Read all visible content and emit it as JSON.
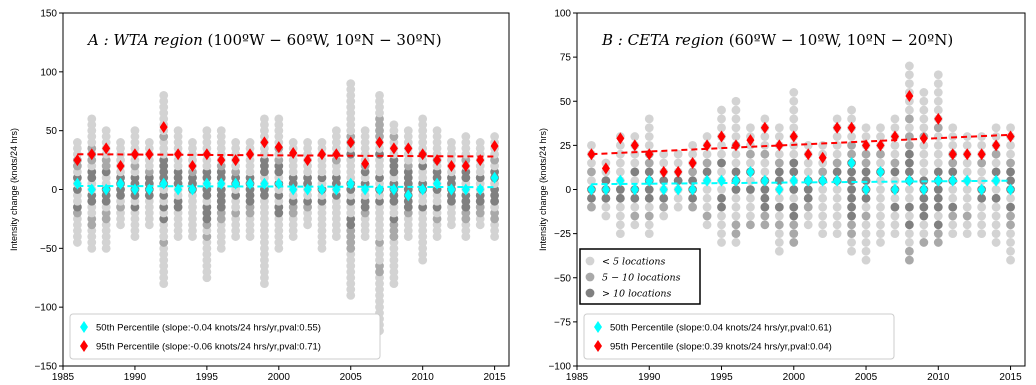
{
  "chart_data": [
    {
      "type": "scatter",
      "title": "A : WTA region (100°W − 60°W, 10°N − 30°N)",
      "title_main": "A : WTA region",
      "title_coords": "(100ºW − 60ºW, 10ºN − 30ºN)",
      "ylabel": "Intensity change (knots/24 hrs)",
      "xlabel": "",
      "xlim": [
        1985,
        2016
      ],
      "ylim": [
        -150,
        150
      ],
      "xticks": [
        "1985",
        "1990",
        "1995",
        "2000",
        "2005",
        "2010",
        "2015"
      ],
      "yticks": [
        "-150",
        "-100",
        "-50",
        "0",
        "50",
        "100",
        "150"
      ],
      "grid": false,
      "legend_position": "lower-left",
      "series": [
        {
          "name": "50th Percentile (slope:-0.04 knots/24 hrs/yr,pval:0.55)",
          "color": "#00ffff",
          "x": [
            1986,
            1987,
            1988,
            1989,
            1990,
            1991,
            1992,
            1993,
            1994,
            1995,
            1996,
            1997,
            1998,
            1999,
            2000,
            2001,
            2002,
            2003,
            2004,
            2005,
            2006,
            2007,
            2008,
            2009,
            2010,
            2011,
            2012,
            2013,
            2014,
            2015
          ],
          "values": [
            5,
            0,
            0,
            5,
            0,
            0,
            5,
            0,
            0,
            5,
            5,
            5,
            5,
            5,
            5,
            0,
            0,
            0,
            0,
            5,
            0,
            0,
            0,
            -5,
            0,
            5,
            0,
            0,
            0,
            10
          ],
          "trend": [
            3,
            2
          ]
        },
        {
          "name": "95th Percentile (slope:-0.06 knots/24 hrs/yr,pval:0.71)",
          "color": "#ff0000",
          "x": [
            1986,
            1987,
            1988,
            1989,
            1990,
            1991,
            1992,
            1993,
            1994,
            1995,
            1996,
            1997,
            1998,
            1999,
            2000,
            2001,
            2002,
            2003,
            2004,
            2005,
            2006,
            2007,
            2008,
            2009,
            2010,
            2011,
            2012,
            2013,
            2014,
            2015
          ],
          "values": [
            25,
            30,
            35,
            20,
            30,
            30,
            53,
            30,
            20,
            30,
            25,
            25,
            30,
            40,
            36,
            31,
            25,
            30,
            30,
            40,
            22,
            40,
            35,
            35,
            30,
            25,
            20,
            20,
            25,
            37
          ],
          "trend": [
            30,
            28
          ]
        }
      ],
      "range_min": [
        -45,
        -50,
        -50,
        -30,
        -40,
        -30,
        -80,
        -40,
        -40,
        -75,
        -50,
        -40,
        -40,
        -80,
        -50,
        -40,
        -30,
        -50,
        -40,
        -90,
        -40,
        -120,
        -80,
        -40,
        -60,
        -40,
        -30,
        -40,
        -30,
        -40
      ],
      "range_max": [
        40,
        60,
        50,
        40,
        50,
        40,
        80,
        50,
        40,
        50,
        50,
        40,
        40,
        60,
        60,
        40,
        40,
        40,
        50,
        90,
        50,
        80,
        55,
        50,
        60,
        50,
        40,
        45,
        40,
        45
      ]
    },
    {
      "type": "scatter",
      "title": "B : CETA region (60°W − 10°W, 10°N − 20°N)",
      "title_main": "B : CETA region",
      "title_coords": "(60ºW − 10ºW, 10ºN − 20ºN)",
      "ylabel": "Intensity change (knots/24 hrs)",
      "xlabel": "",
      "xlim": [
        1985,
        2016
      ],
      "ylim": [
        -100,
        100
      ],
      "xticks": [
        "1985",
        "1990",
        "1995",
        "2000",
        "2005",
        "2010",
        "2015"
      ],
      "yticks": [
        "-100",
        "-75",
        "-50",
        "-25",
        "0",
        "25",
        "50",
        "75",
        "100"
      ],
      "grid": false,
      "legend_position": "lower-left",
      "size_legend": [
        "< 5 locations",
        "5 − 10 locations",
        "> 10 locations"
      ],
      "series": [
        {
          "name": "50th Percentile (slope:0.04 knots/24 hrs/yr,pval:0.61)",
          "color": "#00ffff",
          "x": [
            1986,
            1987,
            1988,
            1989,
            1990,
            1991,
            1992,
            1993,
            1994,
            1995,
            1996,
            1997,
            1998,
            1999,
            2000,
            2001,
            2002,
            2003,
            2004,
            2005,
            2006,
            2007,
            2008,
            2009,
            2010,
            2011,
            2012,
            2013,
            2014,
            2015
          ],
          "values": [
            0,
            0,
            5,
            0,
            5,
            0,
            0,
            0,
            5,
            5,
            5,
            10,
            5,
            0,
            5,
            5,
            5,
            5,
            15,
            0,
            10,
            0,
            5,
            0,
            5,
            5,
            5,
            0,
            5,
            0
          ],
          "trend": [
            3,
            5
          ]
        },
        {
          "name": "95th Percentile (slope:0.39 knots/24 hrs/yr,pval:0.04)",
          "color": "#ff0000",
          "x": [
            1986,
            1987,
            1988,
            1989,
            1990,
            1991,
            1992,
            1993,
            1994,
            1995,
            1996,
            1997,
            1998,
            1999,
            2000,
            2001,
            2002,
            2003,
            2004,
            2005,
            2006,
            2007,
            2008,
            2009,
            2010,
            2011,
            2012,
            2013,
            2014,
            2015
          ],
          "values": [
            20,
            12,
            29,
            25,
            20,
            10,
            10,
            15,
            25,
            30,
            25,
            28,
            35,
            25,
            30,
            20,
            18,
            35,
            35,
            25,
            25,
            30,
            53,
            29,
            40,
            20,
            20,
            20,
            25,
            30
          ],
          "trend": [
            20,
            31
          ]
        }
      ],
      "range_min": [
        -10,
        -15,
        -25,
        -20,
        -25,
        -15,
        -10,
        -10,
        -20,
        -30,
        -30,
        -20,
        -20,
        -35,
        -30,
        -20,
        -25,
        -25,
        -35,
        -40,
        -30,
        -25,
        -40,
        -30,
        -30,
        -25,
        -25,
        -25,
        -30,
        -40
      ],
      "range_max": [
        25,
        15,
        30,
        30,
        40,
        20,
        20,
        25,
        30,
        45,
        50,
        35,
        40,
        35,
        55,
        25,
        25,
        40,
        45,
        35,
        35,
        40,
        70,
        55,
        65,
        35,
        30,
        30,
        35,
        35
      ]
    }
  ]
}
